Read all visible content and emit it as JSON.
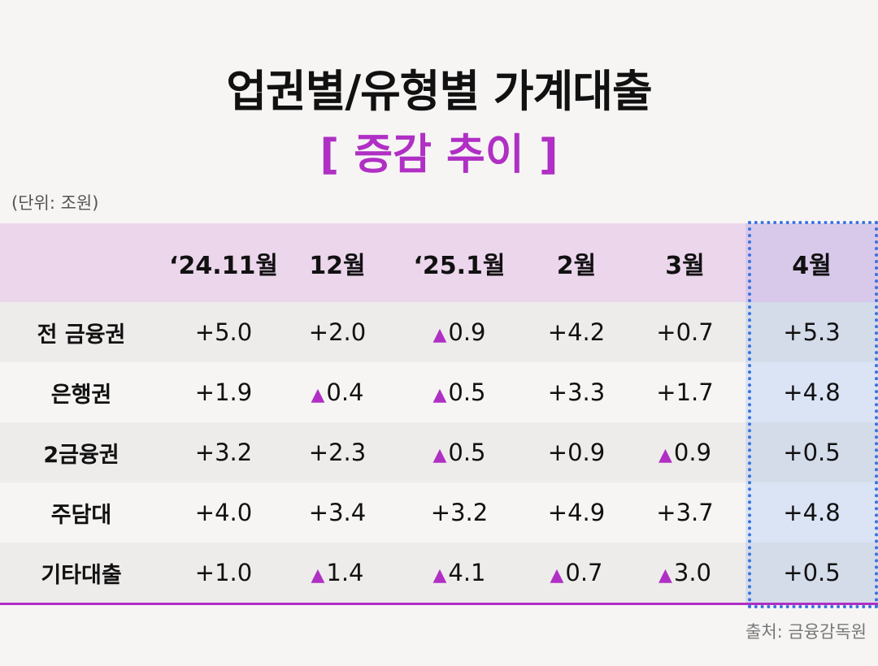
{
  "header": {
    "title": "업권별/유형별 가계대출",
    "subtitle": "[ 증감 추이 ]"
  },
  "unit": "(단위: 조원)",
  "table": {
    "columns": [
      "‘24.11월",
      "12월",
      "‘25.1월",
      "2월",
      "3월",
      "4월"
    ],
    "rows": [
      [
        "전 금융권",
        "+5.0",
        "+2.0",
        "▲0.9",
        "+4.2",
        "+0.7",
        "+5.3"
      ],
      [
        "은행권",
        "+1.9",
        "▲0.4",
        "▲0.5",
        "+3.3",
        "+1.7",
        "+4.8"
      ],
      [
        "2금융권",
        "+3.2",
        "+2.3",
        "▲0.5",
        "+0.9",
        "▲0.9",
        "+0.5"
      ],
      [
        "주담대",
        "+4.0",
        "+3.4",
        "+3.2",
        "+4.9",
        "+3.7",
        "+4.8"
      ],
      [
        "기타대출",
        "+1.0",
        "▲1.4",
        "▲4.1",
        "▲0.7",
        "▲3.0",
        "+0.5"
      ]
    ]
  },
  "source": "출처: 금융감독원"
}
